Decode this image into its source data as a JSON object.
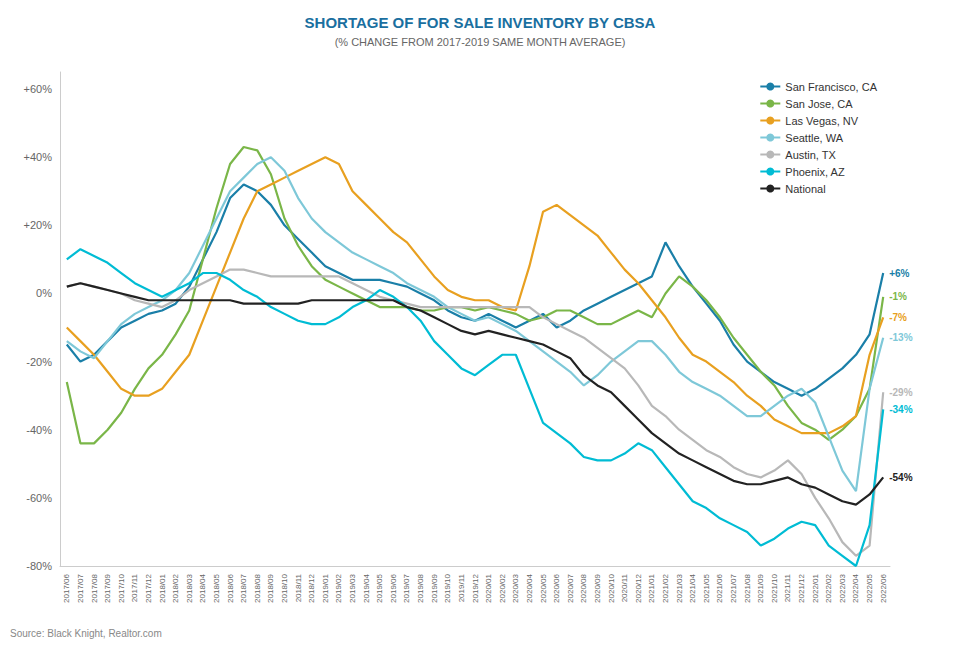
{
  "chart_data": {
    "type": "line",
    "title": "SHORTAGE OF FOR SALE INVENTORY BY CBSA",
    "subtitle": "(% CHANGE FROM 2017-2019 SAME MONTH AVERAGE)",
    "source": "Source: Black Knight, Realtor.com",
    "categories": [
      "2017/06",
      "2017/07",
      "2017/08",
      "2017/09",
      "2017/10",
      "2017/11",
      "2017/12",
      "2018/01",
      "2018/02",
      "2018/03",
      "2018/04",
      "2018/05",
      "2018/06",
      "2018/07",
      "2018/08",
      "2018/09",
      "2018/10",
      "2018/11",
      "2018/12",
      "2019/01",
      "2019/02",
      "2019/03",
      "2019/04",
      "2019/05",
      "2019/06",
      "2019/07",
      "2019/08",
      "2019/09",
      "2019/10",
      "2019/11",
      "2019/12",
      "2020/01",
      "2020/02",
      "2020/03",
      "2020/04",
      "2020/05",
      "2020/06",
      "2020/07",
      "2020/08",
      "2020/09",
      "2020/10",
      "2020/11",
      "2020/12",
      "2021/01",
      "2021/02",
      "2021/03",
      "2021/04",
      "2021/05",
      "2021/06",
      "2021/07",
      "2021/08",
      "2021/09",
      "2021/10",
      "2021/11",
      "2021/12",
      "2022/01",
      "2022/02",
      "2022/03",
      "2022/04",
      "2022/05",
      "2022/06"
    ],
    "series": [
      {
        "name": "San Francisco, CA",
        "color": "#1a7fa8",
        "end_label": "+6%",
        "values": [
          -15,
          -20,
          -18,
          -14,
          -10,
          -8,
          -6,
          -5,
          -3,
          2,
          10,
          18,
          28,
          32,
          30,
          26,
          20,
          16,
          12,
          8,
          6,
          4,
          4,
          4,
          3,
          2,
          0,
          -2,
          -5,
          -7,
          -8,
          -6,
          -8,
          -10,
          -8,
          -6,
          -10,
          -8,
          -5,
          -3,
          -1,
          1,
          3,
          5,
          15,
          8,
          2,
          -3,
          -8,
          -15,
          -20,
          -23,
          -26,
          -28,
          -30,
          -28,
          -25,
          -22,
          -18,
          -12,
          6
        ]
      },
      {
        "name": "San Jose, CA",
        "color": "#7ab648",
        "end_label": "-1%",
        "values": [
          -26,
          -44,
          -44,
          -40,
          -35,
          -28,
          -22,
          -18,
          -12,
          -5,
          10,
          25,
          38,
          43,
          42,
          35,
          22,
          14,
          8,
          4,
          2,
          0,
          -2,
          -4,
          -4,
          -4,
          -5,
          -5,
          -4,
          -4,
          -5,
          -4,
          -5,
          -6,
          -8,
          -7,
          -5,
          -5,
          -7,
          -9,
          -9,
          -7,
          -5,
          -7,
          0,
          5,
          2,
          -2,
          -7,
          -13,
          -18,
          -23,
          -27,
          -33,
          -38,
          -40,
          -43,
          -40,
          -36,
          -28,
          -1
        ]
      },
      {
        "name": "Las Vegas, NV",
        "color": "#e8a020",
        "end_label": "-7%",
        "values": [
          -10,
          -14,
          -18,
          -23,
          -28,
          -30,
          -30,
          -28,
          -23,
          -18,
          -8,
          2,
          12,
          22,
          30,
          32,
          34,
          36,
          38,
          40,
          38,
          30,
          26,
          22,
          18,
          15,
          10,
          5,
          1,
          -1,
          -2,
          -2,
          -4,
          -5,
          8,
          24,
          26,
          23,
          20,
          17,
          12,
          7,
          3,
          -2,
          -7,
          -13,
          -18,
          -20,
          -23,
          -26,
          -30,
          -33,
          -37,
          -39,
          -41,
          -41,
          -41,
          -39,
          -36,
          -18,
          -7
        ]
      },
      {
        "name": "Seattle, WA",
        "color": "#7ec8d8",
        "end_label": "-13%",
        "values": [
          -14,
          -17,
          -19,
          -14,
          -9,
          -6,
          -4,
          -2,
          1,
          6,
          14,
          22,
          30,
          34,
          38,
          40,
          36,
          28,
          22,
          18,
          15,
          12,
          10,
          8,
          6,
          3,
          1,
          -1,
          -4,
          -6,
          -8,
          -7,
          -9,
          -11,
          -14,
          -17,
          -20,
          -23,
          -27,
          -24,
          -20,
          -17,
          -14,
          -14,
          -18,
          -23,
          -26,
          -28,
          -30,
          -33,
          -36,
          -36,
          -33,
          -30,
          -28,
          -32,
          -42,
          -52,
          -58,
          -28,
          -13
        ]
      },
      {
        "name": "Austin, TX",
        "color": "#b8b8b8",
        "end_label": "-29%",
        "values": [
          2,
          3,
          2,
          1,
          0,
          -2,
          -3,
          -4,
          -2,
          1,
          3,
          5,
          7,
          7,
          6,
          5,
          5,
          5,
          5,
          5,
          5,
          3,
          1,
          -1,
          -2,
          -3,
          -4,
          -4,
          -4,
          -4,
          -4,
          -4,
          -4,
          -4,
          -4,
          -7,
          -9,
          -11,
          -13,
          -16,
          -19,
          -22,
          -27,
          -33,
          -36,
          -40,
          -43,
          -46,
          -48,
          -51,
          -53,
          -54,
          -52,
          -49,
          -53,
          -60,
          -66,
          -73,
          -77,
          -74,
          -29
        ]
      },
      {
        "name": "Phoenix, AZ",
        "color": "#00bcd4",
        "end_label": "-34%",
        "values": [
          10,
          13,
          11,
          9,
          6,
          3,
          1,
          -1,
          1,
          3,
          6,
          6,
          4,
          1,
          -1,
          -4,
          -6,
          -8,
          -9,
          -9,
          -7,
          -4,
          -2,
          1,
          -1,
          -4,
          -8,
          -14,
          -18,
          -22,
          -24,
          -21,
          -18,
          -18,
          -28,
          -38,
          -41,
          -44,
          -48,
          -49,
          -49,
          -47,
          -44,
          -46,
          -51,
          -56,
          -61,
          -63,
          -66,
          -68,
          -70,
          -74,
          -72,
          -69,
          -67,
          -68,
          -74,
          -77,
          -80,
          -68,
          -34
        ]
      },
      {
        "name": "National",
        "color": "#222222",
        "end_label": "-54%",
        "values": [
          2,
          3,
          2,
          1,
          0,
          -1,
          -2,
          -2,
          -2,
          -2,
          -2,
          -2,
          -2,
          -3,
          -3,
          -3,
          -3,
          -3,
          -2,
          -2,
          -2,
          -2,
          -2,
          -2,
          -2,
          -4,
          -5,
          -7,
          -9,
          -11,
          -12,
          -11,
          -12,
          -13,
          -14,
          -15,
          -17,
          -19,
          -24,
          -27,
          -29,
          -33,
          -37,
          -41,
          -44,
          -47,
          -49,
          -51,
          -53,
          -55,
          -56,
          -56,
          -55,
          -54,
          -56,
          -57,
          -59,
          -61,
          -62,
          -59,
          -54
        ]
      }
    ],
    "ylim": [
      -80,
      65
    ],
    "yticks": [
      {
        "value": -80,
        "label": "-80%"
      },
      {
        "value": -60,
        "label": "-60%"
      },
      {
        "value": -40,
        "label": "-40%"
      },
      {
        "value": -20,
        "label": "-20%"
      },
      {
        "value": 0,
        "label": "0%"
      },
      {
        "value": 20,
        "label": "+20%"
      },
      {
        "value": 40,
        "label": "+40%"
      },
      {
        "value": 60,
        "label": "+60%"
      }
    ],
    "grid": false,
    "legend": "upper right"
  }
}
